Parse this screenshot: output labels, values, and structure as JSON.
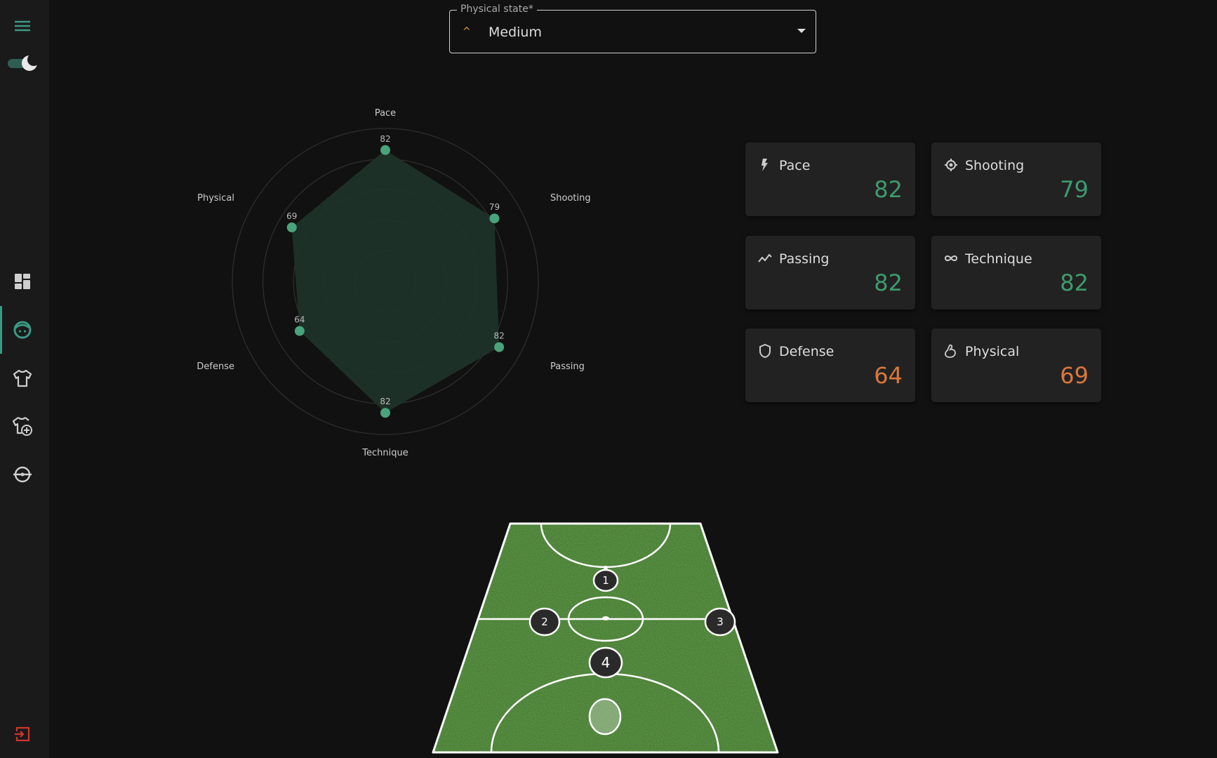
{
  "sidebar": {
    "items": [
      {
        "icon": "dashboard-icon"
      },
      {
        "icon": "player-face-icon",
        "active": true
      },
      {
        "icon": "shirt-icon"
      },
      {
        "icon": "shirt-add-icon"
      },
      {
        "icon": "circle-minus-icon"
      }
    ],
    "logout_icon": "logout-icon",
    "menu_icon": "menu-icon",
    "theme_toggle": "dark"
  },
  "physical_state": {
    "label": "Physical state*",
    "value": "Medium",
    "level_icon": "chevron-up-icon"
  },
  "colors": {
    "accent": "#3a9a86",
    "good": "#3f9a6e",
    "warn": "#d9773f",
    "radar_fill": "#1f3329",
    "radar_point": "#4aa37a"
  },
  "stats": [
    {
      "label": "Pace",
      "value": "82",
      "icon": "bolt-icon",
      "tone": "good"
    },
    {
      "label": "Shooting",
      "value": "79",
      "icon": "target-icon",
      "tone": "good"
    },
    {
      "label": "Passing",
      "value": "82",
      "icon": "trend-icon",
      "tone": "good"
    },
    {
      "label": "Technique",
      "value": "82",
      "icon": "infinity-icon",
      "tone": "good"
    },
    {
      "label": "Defense",
      "value": "64",
      "icon": "shield-icon",
      "tone": "warn"
    },
    {
      "label": "Physical",
      "value": "69",
      "icon": "muscle-icon",
      "tone": "warn"
    }
  ],
  "chart_data": {
    "type": "radar",
    "categories": [
      "Pace",
      "Shooting",
      "Passing",
      "Technique",
      "Defense",
      "Physical"
    ],
    "values": [
      82,
      79,
      82,
      82,
      64,
      69
    ],
    "rlim": [
      9,
      94
    ],
    "grid": true
  },
  "pitch": {
    "players": [
      "1",
      "2",
      "3",
      "4"
    ]
  }
}
